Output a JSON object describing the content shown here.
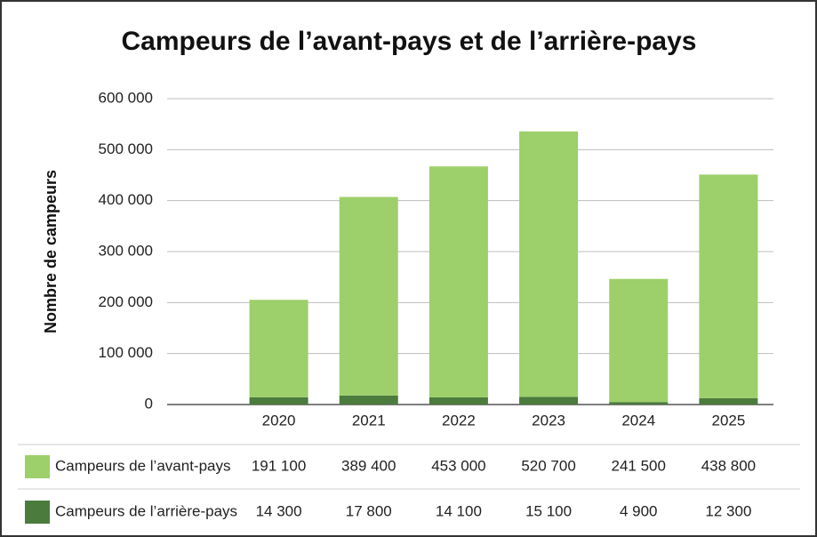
{
  "chart_data": {
    "type": "stacked_bar",
    "title": "Campeurs de l’avant-pays et de l’arrière-pays",
    "y_label": "Nombre de campeurs",
    "categories": [
      "2020",
      "2021",
      "2022",
      "2023",
      "2024",
      "2025"
    ],
    "series": [
      {
        "name": "Campeurs de l’avant-pays",
        "color": "#9dcf6a",
        "values": [
          191100,
          389400,
          453000,
          520700,
          241500,
          438800
        ],
        "value_labels": [
          "191 100",
          "389 400",
          "453 000",
          "520 700",
          "241 500",
          "438 800"
        ]
      },
      {
        "name": "Campeurs de l’arrière-pays",
        "color": "#4b7b3d",
        "values": [
          14300,
          17800,
          14100,
          15100,
          4900,
          12300
        ],
        "value_labels": [
          "14 300",
          "17 800",
          "14 100",
          "15 100",
          "4 900",
          "12 300"
        ]
      }
    ],
    "ylim": [
      0,
      600000
    ],
    "yticks": [
      0,
      {
        "value": 100000,
        "label": "100 000"
      },
      {
        "value": 200000,
        "label": "200 000"
      },
      {
        "value": 300000,
        "label": "300 000"
      },
      {
        "value": 400000,
        "label": "400 000"
      },
      {
        "value": 500000,
        "label": "500 000"
      },
      {
        "value": 600000,
        "label": "600 000"
      }
    ],
    "grid": true
  }
}
